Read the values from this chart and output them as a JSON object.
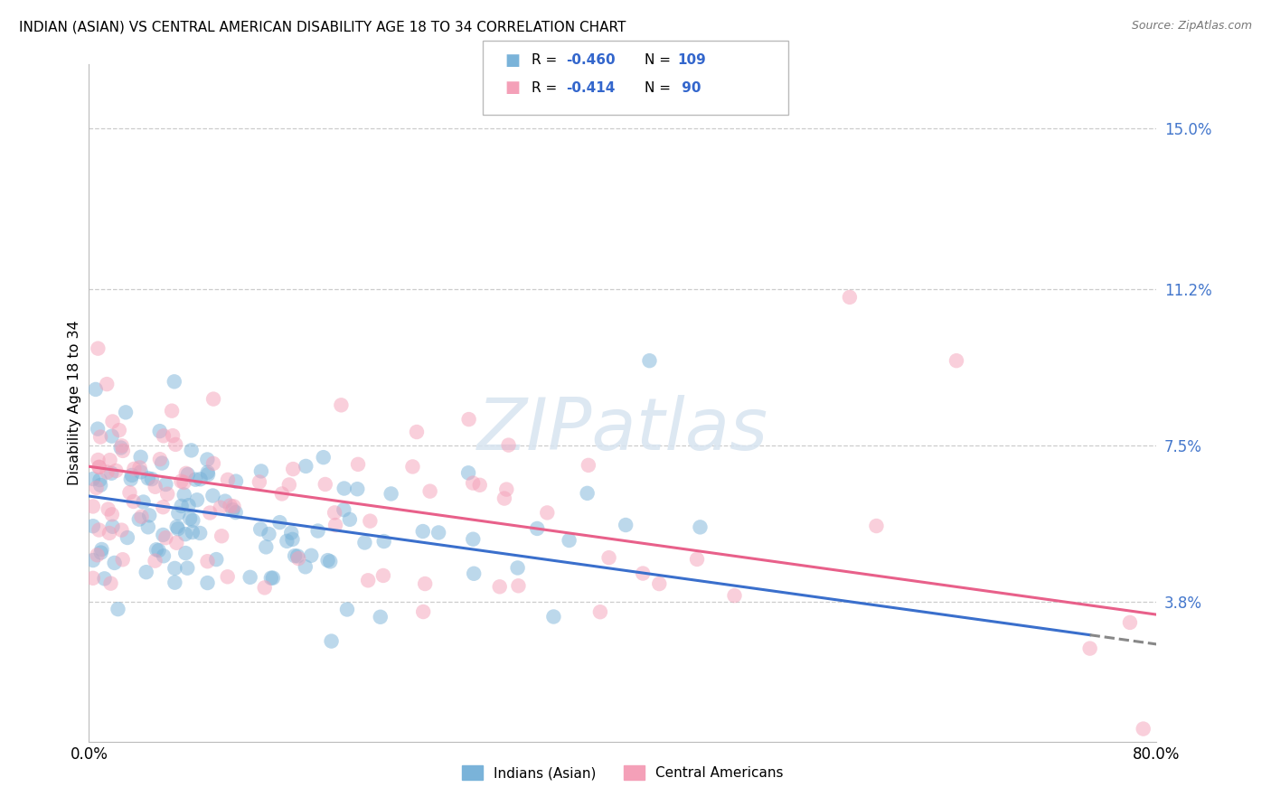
{
  "title": "INDIAN (ASIAN) VS CENTRAL AMERICAN DISABILITY AGE 18 TO 34 CORRELATION CHART",
  "source": "Source: ZipAtlas.com",
  "ylabel": "Disability Age 18 to 34",
  "ytick_values": [
    3.8,
    7.5,
    11.2,
    15.0
  ],
  "xmin": 0.0,
  "xmax": 80.0,
  "ymin": 0.5,
  "ymax": 16.5,
  "indian_color": "#7ab3d9",
  "central_color": "#f4a0b8",
  "indian_line_color": "#3a6fcc",
  "central_line_color": "#e8608a",
  "watermark": "ZIPatlas",
  "blue_line_x0": 0.0,
  "blue_line_y0": 6.3,
  "blue_line_x1": 80.0,
  "blue_line_y1": 2.8,
  "blue_solid_end": 75.0,
  "pink_line_x0": 0.0,
  "pink_line_y0": 7.0,
  "pink_line_x1": 80.0,
  "pink_line_y1": 3.5,
  "legend_blue_r": "-0.460",
  "legend_blue_n": "109",
  "legend_pink_r": "-0.414",
  "legend_pink_n": " 90",
  "bottom_legend_1": "Indians (Asian)",
  "bottom_legend_2": "Central Americans"
}
